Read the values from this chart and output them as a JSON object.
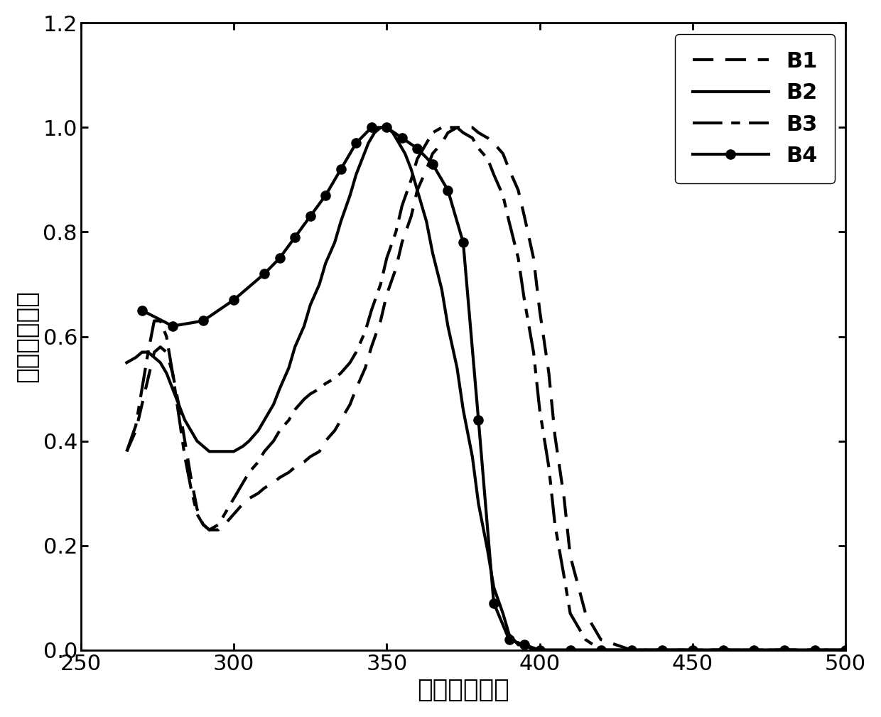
{
  "xlabel": "波长（纳米）",
  "ylabel": "相对吸收强度",
  "xlim": [
    250,
    500
  ],
  "ylim": [
    0,
    1.2
  ],
  "xticks": [
    250,
    300,
    350,
    400,
    450,
    500
  ],
  "yticks": [
    0,
    0.2,
    0.4,
    0.6,
    0.8,
    1.0,
    1.2
  ],
  "B1_x": [
    265,
    268,
    270,
    272,
    274,
    276,
    278,
    280,
    282,
    284,
    286,
    288,
    290,
    292,
    295,
    297,
    300,
    303,
    305,
    308,
    310,
    313,
    315,
    318,
    320,
    323,
    325,
    328,
    330,
    333,
    335,
    338,
    340,
    343,
    345,
    348,
    350,
    353,
    355,
    358,
    360,
    363,
    365,
    368,
    370,
    373,
    375,
    378,
    380,
    383,
    385,
    388,
    390,
    393,
    395,
    398,
    400,
    403,
    405,
    408,
    410,
    415,
    420,
    425,
    430,
    435,
    440,
    450,
    460,
    470,
    480,
    490,
    500
  ],
  "B1_y": [
    0.38,
    0.42,
    0.47,
    0.52,
    0.57,
    0.58,
    0.57,
    0.53,
    0.47,
    0.4,
    0.33,
    0.27,
    0.24,
    0.23,
    0.23,
    0.24,
    0.26,
    0.28,
    0.29,
    0.3,
    0.31,
    0.32,
    0.33,
    0.34,
    0.35,
    0.36,
    0.37,
    0.38,
    0.4,
    0.42,
    0.44,
    0.47,
    0.5,
    0.54,
    0.58,
    0.63,
    0.68,
    0.73,
    0.78,
    0.83,
    0.88,
    0.92,
    0.95,
    0.97,
    0.99,
    1.0,
    1.0,
    1.0,
    0.99,
    0.98,
    0.97,
    0.95,
    0.92,
    0.88,
    0.83,
    0.75,
    0.65,
    0.53,
    0.41,
    0.29,
    0.18,
    0.07,
    0.02,
    0.01,
    0.0,
    0.0,
    0.0,
    0.0,
    0.0,
    0.0,
    0.0,
    0.0,
    0.0
  ],
  "B2_x": [
    265,
    268,
    270,
    272,
    274,
    276,
    278,
    280,
    282,
    284,
    286,
    288,
    290,
    292,
    295,
    298,
    300,
    303,
    305,
    308,
    310,
    313,
    315,
    318,
    320,
    323,
    325,
    328,
    330,
    333,
    335,
    338,
    340,
    342,
    344,
    346,
    348,
    350,
    352,
    354,
    356,
    358,
    360,
    363,
    365,
    368,
    370,
    373,
    375,
    378,
    380,
    383,
    385,
    388,
    390,
    393,
    395,
    398,
    400,
    403,
    405,
    410,
    415,
    420,
    425,
    430,
    440,
    450,
    460,
    470,
    480,
    490,
    500
  ],
  "B2_y": [
    0.55,
    0.56,
    0.57,
    0.57,
    0.56,
    0.55,
    0.53,
    0.5,
    0.47,
    0.44,
    0.42,
    0.4,
    0.39,
    0.38,
    0.38,
    0.38,
    0.38,
    0.39,
    0.4,
    0.42,
    0.44,
    0.47,
    0.5,
    0.54,
    0.58,
    0.62,
    0.66,
    0.7,
    0.74,
    0.78,
    0.82,
    0.87,
    0.91,
    0.94,
    0.97,
    0.99,
    1.0,
    1.0,
    0.99,
    0.97,
    0.95,
    0.92,
    0.88,
    0.82,
    0.76,
    0.69,
    0.62,
    0.54,
    0.46,
    0.37,
    0.28,
    0.19,
    0.12,
    0.07,
    0.03,
    0.01,
    0.01,
    0.0,
    0.0,
    0.0,
    0.0,
    0.0,
    0.0,
    0.0,
    0.0,
    0.0,
    0.0,
    0.0,
    0.0,
    0.0,
    0.0,
    0.0,
    0.0
  ],
  "B3_x": [
    265,
    268,
    270,
    272,
    274,
    276,
    278,
    280,
    282,
    284,
    286,
    288,
    290,
    292,
    295,
    297,
    300,
    303,
    305,
    308,
    310,
    313,
    315,
    318,
    320,
    323,
    325,
    328,
    330,
    333,
    335,
    338,
    340,
    343,
    345,
    348,
    350,
    353,
    355,
    358,
    360,
    363,
    365,
    368,
    370,
    373,
    375,
    378,
    380,
    383,
    385,
    388,
    390,
    393,
    395,
    398,
    400,
    403,
    405,
    408,
    410,
    415,
    420,
    425,
    430,
    435,
    440,
    450,
    460,
    470,
    480,
    490,
    500
  ],
  "B3_y": [
    0.38,
    0.43,
    0.5,
    0.57,
    0.63,
    0.63,
    0.6,
    0.53,
    0.45,
    0.37,
    0.31,
    0.26,
    0.24,
    0.23,
    0.24,
    0.26,
    0.29,
    0.32,
    0.34,
    0.36,
    0.38,
    0.4,
    0.42,
    0.44,
    0.46,
    0.48,
    0.49,
    0.5,
    0.51,
    0.52,
    0.53,
    0.55,
    0.57,
    0.61,
    0.65,
    0.7,
    0.75,
    0.8,
    0.85,
    0.9,
    0.94,
    0.97,
    0.99,
    1.0,
    1.0,
    1.0,
    0.99,
    0.98,
    0.96,
    0.94,
    0.91,
    0.87,
    0.82,
    0.75,
    0.67,
    0.57,
    0.46,
    0.35,
    0.24,
    0.14,
    0.07,
    0.02,
    0.0,
    0.0,
    0.0,
    0.0,
    0.0,
    0.0,
    0.0,
    0.0,
    0.0,
    0.0,
    0.0
  ],
  "B4_x": [
    270,
    280,
    290,
    300,
    310,
    315,
    320,
    325,
    330,
    335,
    340,
    345,
    350,
    355,
    360,
    365,
    370,
    375,
    380,
    385,
    390,
    395,
    400,
    410,
    420,
    430,
    440,
    450,
    460,
    470,
    480,
    490,
    500
  ],
  "B4_y": [
    0.65,
    0.62,
    0.63,
    0.67,
    0.72,
    0.75,
    0.79,
    0.83,
    0.87,
    0.92,
    0.97,
    1.0,
    1.0,
    0.98,
    0.96,
    0.93,
    0.88,
    0.78,
    0.44,
    0.09,
    0.02,
    0.01,
    0.0,
    0.0,
    0.0,
    0.0,
    0.0,
    0.0,
    0.0,
    0.0,
    0.0,
    0.0,
    0.0
  ]
}
